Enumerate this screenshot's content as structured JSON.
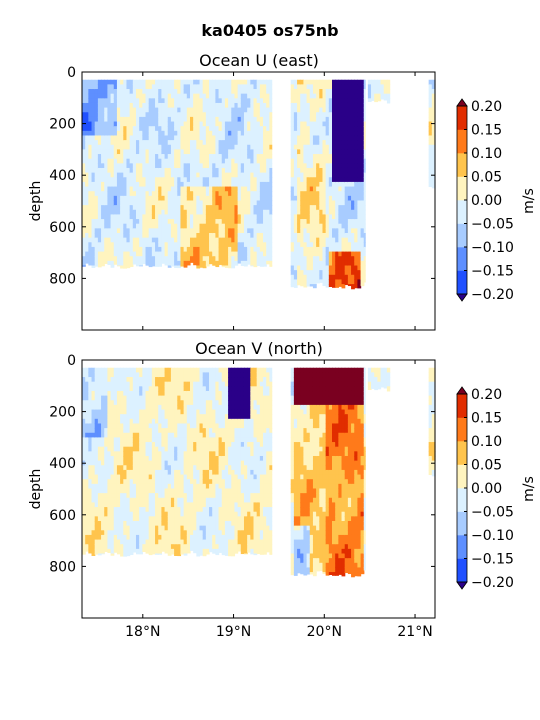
{
  "figure": {
    "title": "ka0405 os75nb"
  },
  "chart_data": [
    {
      "type": "heatmap",
      "title": "Ocean U (east)",
      "xlabel": "",
      "ylabel": "depth",
      "x_range": [
        17.33,
        21.22
      ],
      "y_range": [
        0,
        1000
      ],
      "y_inverted": true,
      "x_ticks": [
        18,
        19,
        20,
        21
      ],
      "x_tick_labels": [
        "18°N",
        "19°N",
        "20°N",
        "21°N"
      ],
      "y_ticks": [
        0,
        200,
        400,
        600,
        800
      ],
      "y_tick_labels": [
        "0",
        "200",
        "400",
        "600",
        "800"
      ],
      "data_extents": [
        {
          "lat_start": 17.33,
          "lat_end": 19.42,
          "depth_top": 30,
          "depth_bottom": 760
        },
        {
          "lat_start": 19.63,
          "lat_end": 20.45,
          "depth_top": 30,
          "depth_bottom": 840
        },
        {
          "lat_start": 20.48,
          "lat_end": 20.72,
          "depth_top": 30,
          "depth_bottom": 120
        },
        {
          "lat_start": 21.15,
          "lat_end": 21.22,
          "depth_top": 30,
          "depth_bottom": 450
        }
      ],
      "features": [
        {
          "lat": 20.2,
          "depth": 220,
          "value": -0.2,
          "note": "strong westward flow 20.1–20.45°N, 30–400 m"
        },
        {
          "lat": 20.2,
          "depth": 790,
          "value": 0.15,
          "note": "eastward flow near 790 m"
        },
        {
          "lat": 18.7,
          "depth": 620,
          "value": 0.08,
          "note": "weak eastward flow 18.5–19.0°N at depth"
        },
        {
          "lat": 17.5,
          "depth": 100,
          "value": -0.15,
          "note": "westward near surface"
        }
      ],
      "colorbar": {
        "label": "m/s",
        "levels": [
          -0.2,
          -0.15,
          -0.1,
          -0.05,
          0.0,
          0.05,
          0.1,
          0.15,
          0.2
        ],
        "tick_labels": [
          "0.20",
          "0.15",
          "0.10",
          "0.05",
          "0.00",
          "−0.05",
          "−0.10",
          "−0.15",
          "−0.20"
        ],
        "extend": "both"
      }
    },
    {
      "type": "heatmap",
      "title": "Ocean V (north)",
      "xlabel": "",
      "ylabel": "depth",
      "x_range": [
        17.33,
        21.22
      ],
      "y_range": [
        0,
        1000
      ],
      "y_inverted": true,
      "x_ticks": [
        18,
        19,
        20,
        21
      ],
      "x_tick_labels": [
        "18°N",
        "19°N",
        "20°N",
        "21°N"
      ],
      "y_ticks": [
        0,
        200,
        400,
        600,
        800
      ],
      "y_tick_labels": [
        "0",
        "200",
        "400",
        "600",
        "800"
      ],
      "data_extents": [
        {
          "lat_start": 17.33,
          "lat_end": 19.42,
          "depth_top": 30,
          "depth_bottom": 760
        },
        {
          "lat_start": 19.63,
          "lat_end": 20.45,
          "depth_top": 30,
          "depth_bottom": 840
        },
        {
          "lat_start": 20.48,
          "lat_end": 20.72,
          "depth_top": 30,
          "depth_bottom": 120
        },
        {
          "lat_start": 21.15,
          "lat_end": 21.22,
          "depth_top": 30,
          "depth_bottom": 450
        }
      ],
      "features": [
        {
          "lat": 20.05,
          "depth": 100,
          "value": 0.2,
          "note": "strong northward flow 19.65–20.45°N, 30–170 m"
        },
        {
          "lat": 19.0,
          "depth": 100,
          "value": -0.2,
          "note": "southward flow near 19°N surface"
        },
        {
          "lat": 17.4,
          "depth": 150,
          "value": -0.1,
          "note": "southward near 17.4°N"
        },
        {
          "lat": 20.1,
          "depth": 500,
          "value": 0.1,
          "note": "northward band below 170 m"
        }
      ],
      "colorbar": {
        "label": "m/s",
        "levels": [
          -0.2,
          -0.15,
          -0.1,
          -0.05,
          0.0,
          0.05,
          0.1,
          0.15,
          0.2
        ],
        "tick_labels": [
          "0.20",
          "0.15",
          "0.10",
          "0.05",
          "0.00",
          "−0.05",
          "−0.10",
          "−0.15",
          "−0.20"
        ],
        "extend": "both"
      }
    }
  ],
  "colors": {
    "levels": [
      "#3a00e6",
      "#2050ff",
      "#5e8fff",
      "#a8ccff",
      "#dcf1ff",
      "#fff4bf",
      "#ffc44d",
      "#ff7a1a",
      "#e12d00",
      "#8b0019"
    ],
    "extend_low": "#2a0088",
    "extend_high": "#7a0020",
    "background": "#ffffff"
  }
}
